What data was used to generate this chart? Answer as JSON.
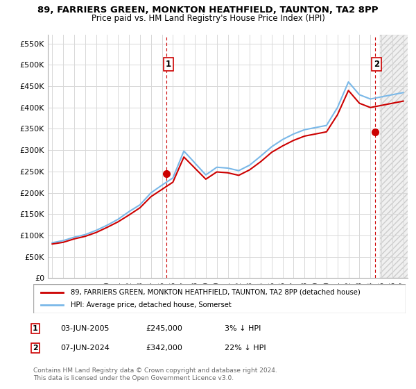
{
  "title": "89, FARRIERS GREEN, MONKTON HEATHFIELD, TAUNTON, TA2 8PP",
  "subtitle": "Price paid vs. HM Land Registry's House Price Index (HPI)",
  "legend_line1": "89, FARRIERS GREEN, MONKTON HEATHFIELD, TAUNTON, TA2 8PP (detached house)",
  "legend_line2": "HPI: Average price, detached house, Somerset",
  "annotation1_label": "1",
  "annotation1_date": "03-JUN-2005",
  "annotation1_price": "£245,000",
  "annotation1_hpi": "3% ↓ HPI",
  "annotation2_label": "2",
  "annotation2_date": "07-JUN-2024",
  "annotation2_price": "£342,000",
  "annotation2_hpi": "22% ↓ HPI",
  "footnote": "Contains HM Land Registry data © Crown copyright and database right 2024.\nThis data is licensed under the Open Government Licence v3.0.",
  "ylim": [
    0,
    570000
  ],
  "yticks": [
    0,
    50000,
    100000,
    150000,
    200000,
    250000,
    300000,
    350000,
    400000,
    450000,
    500000,
    550000
  ],
  "ytick_labels": [
    "£0",
    "£50K",
    "£100K",
    "£150K",
    "£200K",
    "£250K",
    "£300K",
    "£350K",
    "£400K",
    "£450K",
    "£500K",
    "£550K"
  ],
  "hpi_color": "#7ab8e8",
  "price_color": "#cc0000",
  "vline_color": "#cc0000",
  "marker_color": "#cc0000",
  "grid_color": "#d8d8d8",
  "bg_color": "#ffffff",
  "sale1_x": 2005.42,
  "sale1_y": 245000,
  "sale2_x": 2024.42,
  "sale2_y": 342000,
  "hatch_start": 2024.9,
  "xlim_left": 1994.6,
  "xlim_right": 2027.4,
  "hpi_x": [
    1995,
    1996,
    1997,
    1998,
    1999,
    2000,
    2001,
    2002,
    2003,
    2004,
    2005,
    2006,
    2007,
    2008,
    2009,
    2010,
    2011,
    2012,
    2013,
    2014,
    2015,
    2016,
    2017,
    2018,
    2019,
    2020,
    2021,
    2022,
    2023,
    2024,
    2025,
    2026,
    2027
  ],
  "hpi_y": [
    83000,
    88000,
    96000,
    102000,
    112000,
    124000,
    138000,
    156000,
    172000,
    200000,
    218000,
    235000,
    298000,
    270000,
    242000,
    260000,
    258000,
    252000,
    265000,
    286000,
    308000,
    325000,
    338000,
    348000,
    353000,
    358000,
    400000,
    460000,
    430000,
    420000,
    425000,
    430000,
    435000
  ],
  "price_x": [
    1995,
    1996,
    1997,
    1998,
    1999,
    2000,
    2001,
    2002,
    2003,
    2004,
    2005,
    2006,
    2007,
    2008,
    2009,
    2010,
    2011,
    2012,
    2013,
    2014,
    2015,
    2016,
    2017,
    2018,
    2019,
    2020,
    2021,
    2022,
    2023,
    2024,
    2025,
    2026,
    2027
  ],
  "price_y": [
    80000,
    84000,
    92000,
    98000,
    107000,
    119000,
    132000,
    148000,
    165000,
    191000,
    208000,
    225000,
    284000,
    258000,
    232000,
    249000,
    247000,
    241000,
    254000,
    273000,
    295000,
    310000,
    323000,
    333000,
    338000,
    343000,
    383000,
    440000,
    410000,
    400000,
    405000,
    410000,
    415000
  ],
  "xtick_years": [
    1995,
    1996,
    1997,
    1998,
    1999,
    2000,
    2001,
    2002,
    2003,
    2004,
    2005,
    2006,
    2007,
    2008,
    2009,
    2010,
    2011,
    2012,
    2013,
    2014,
    2015,
    2016,
    2017,
    2018,
    2019,
    2020,
    2021,
    2022,
    2023,
    2024,
    2025,
    2026,
    2027
  ]
}
